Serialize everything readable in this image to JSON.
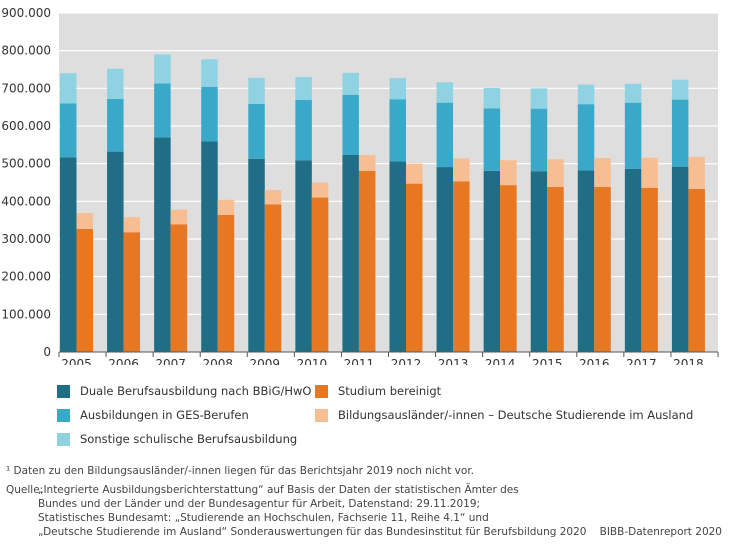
{
  "chart_data": {
    "type": "bar",
    "stacked_groups": true,
    "categories": [
      "2005",
      "2006",
      "2007",
      "2008",
      "2009",
      "2010",
      "2011",
      "2012",
      "2013",
      "2014",
      "2015",
      "2016",
      "2017",
      "2018"
    ],
    "ylim": [
      0,
      900000
    ],
    "yticks": [
      0,
      100000,
      200000,
      300000,
      400000,
      500000,
      600000,
      700000,
      800000,
      900000
    ],
    "ytick_labels": [
      "0",
      "100.000",
      "200.000",
      "300.000",
      "400.000",
      "500.000",
      "600.000",
      "700.000",
      "800.000",
      "900.000"
    ],
    "grid": true,
    "stacks": [
      {
        "stack": "Berufsausbildung",
        "series": [
          {
            "name": "Duale Berufsausbildung nach BBiG/HwO",
            "color": "#1f6e86",
            "values": [
              517000,
              532000,
              570000,
              559000,
              513000,
              509000,
              523000,
              506000,
              491000,
              481000,
              480000,
              482000,
              486000,
              492000
            ]
          },
          {
            "name": "Ausbildungen in GES-Berufen",
            "color": "#3aa9c9",
            "values": [
              143000,
              140000,
              143000,
              145000,
              146000,
              160000,
              160000,
              165000,
              171000,
              166000,
              166000,
              176000,
              176000,
              178000
            ]
          },
          {
            "name": "Sonstige schulische Berufsausbildung",
            "color": "#8fd3e3",
            "values": [
              80000,
              80000,
              77000,
              73000,
              69000,
              61000,
              58000,
              56000,
              54000,
              54000,
              54000,
              52000,
              50000,
              53000
            ]
          }
        ]
      },
      {
        "stack": "Studium",
        "series": [
          {
            "name": "Studium bereinigt",
            "color": "#e87722",
            "values": [
              327000,
              318000,
              339000,
              364000,
              392000,
              410000,
              481000,
              447000,
              453000,
              443000,
              438000,
              438000,
              436000,
              433000
            ]
          },
          {
            "name": "Bildungsausländer/-innen – Deutsche Studierende im Ausland",
            "color": "#f7be94",
            "values": [
              42000,
              40000,
              39000,
              40000,
              38000,
              40000,
              42000,
              53000,
              61000,
              66000,
              74000,
              77000,
              80000,
              85000
            ]
          }
        ]
      }
    ]
  },
  "legend": {
    "duale": "Duale Berufsausbildung nach BBiG/HwO",
    "studium": "Studium bereinigt",
    "ges": "Ausbildungen in GES-Berufen",
    "bildungsauslaender": "Bildungsausländer/-innen – Deutsche Studierende im Ausland",
    "sonstige": "Sonstige schulische Berufsausbildung"
  },
  "footnote": "¹ Daten zu den Bildungsausländer/-innen liegen für das Berichtsjahr 2019 noch nicht vor.",
  "source": {
    "label": "Quelle:",
    "lines": [
      "„Integrierte Ausbildungsberichterstattung“ auf Basis der Daten der statistischen Ämter des",
      "Bundes und der Länder und der Bundesagentur für Arbeit, Datenstand: 29.11.2019;",
      "Statistisches Bundesamt: „Studierende an Hochschulen, Fachserie 11, Reihe 4.1“ und",
      "„Deutsche Studierende im Ausland“ Sonderauswertungen für das Bundesinstitut für Berufsbildung 2020"
    ]
  },
  "credit": "BIBB-Datenreport 2020"
}
